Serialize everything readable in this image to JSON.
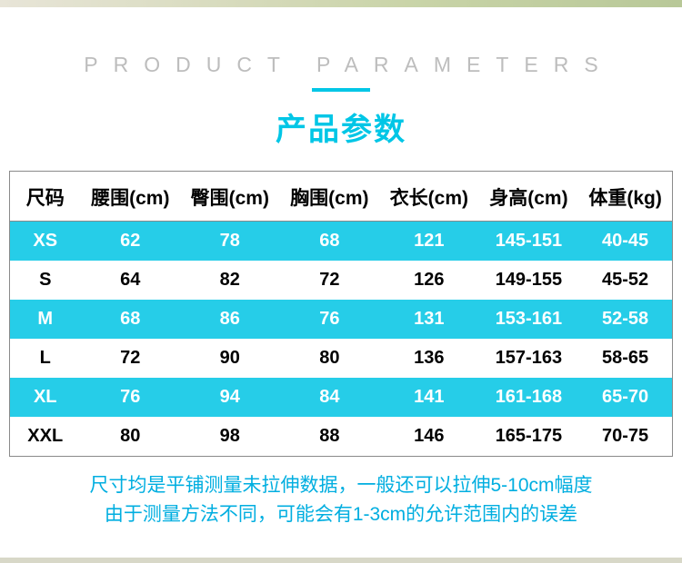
{
  "header": {
    "title_en": "PRODUCT PARAMETERS",
    "title_cn": "产品参数"
  },
  "table": {
    "columns": [
      "尺码",
      "腰围(cm)",
      "臀围(cm)",
      "胸围(cm)",
      "衣长(cm)",
      "身高(cm)",
      "体重(kg)"
    ],
    "rows": [
      [
        "XS",
        "62",
        "78",
        "68",
        "121",
        "145-151",
        "40-45"
      ],
      [
        "S",
        "64",
        "82",
        "72",
        "126",
        "149-155",
        "45-52"
      ],
      [
        "M",
        "68",
        "86",
        "76",
        "131",
        "153-161",
        "52-58"
      ],
      [
        "L",
        "72",
        "90",
        "80",
        "136",
        "157-163",
        "58-65"
      ],
      [
        "XL",
        "76",
        "94",
        "84",
        "141",
        "161-168",
        "65-70"
      ],
      [
        "XXL",
        "80",
        "98",
        "88",
        "146",
        "165-175",
        "70-75"
      ]
    ],
    "odd_row_bg": "#26cde8",
    "even_row_bg": "#ffffff",
    "border_color": "#8a8a8a"
  },
  "footer": {
    "line1": "尺寸均是平铺测量未拉伸数据，一般还可以拉伸5-10cm幅度",
    "line2": "由于测量方法不同，可能会有1-3cm的允许范围内的误差"
  },
  "colors": {
    "accent": "#00c6e6",
    "title_en_gray": "#bdbdbd",
    "note_blue": "#00aee0"
  }
}
